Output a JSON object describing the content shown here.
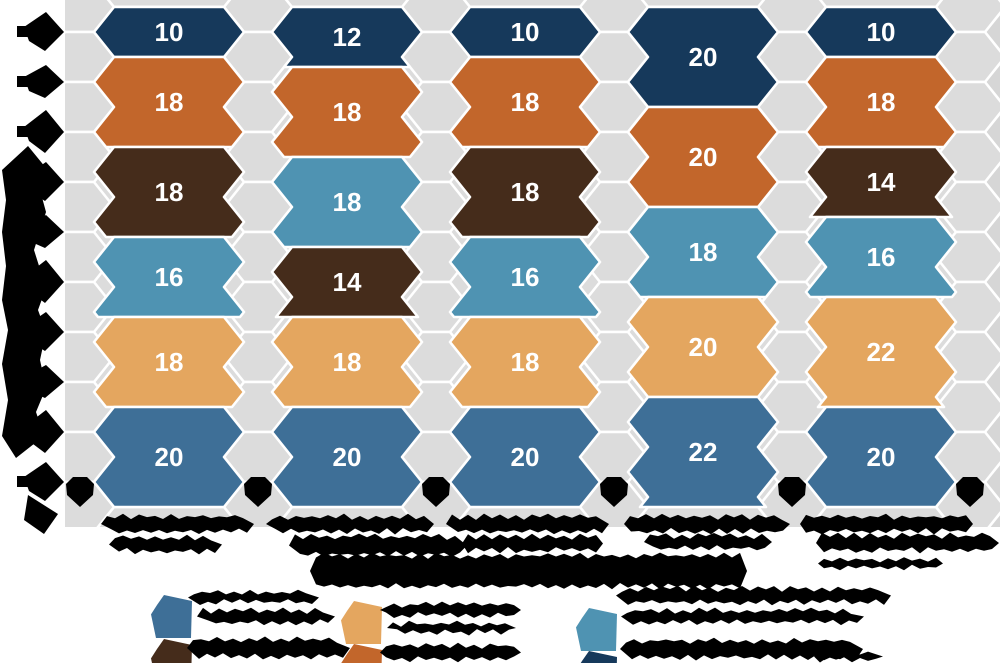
{
  "figure": {
    "plot_bg": "#d6d6d6",
    "hex_fill": "#dcdcdc",
    "gap_color": "#ffffff",
    "marker_color": "#000000",
    "redaction_color": "#000000",
    "value_text_color": "#ffffff"
  },
  "palette": {
    "navy": "#16395b",
    "orange": "#c2662b",
    "brown": "#452c1b",
    "steel": "#4f93b2",
    "tan": "#e4a65f",
    "blue": "#3e6f97"
  },
  "chart_data": {
    "type": "bar",
    "variant": "stacked-hexagon-columns",
    "stacked": true,
    "total_per_column": 100,
    "categories": [
      "",
      "",
      "",
      "",
      ""
    ],
    "category_labels_illegible": true,
    "title": "",
    "y_axis": {
      "tick_count": 10,
      "labels_illegible": true,
      "title_illegible": true,
      "range_units": [
        0,
        100
      ],
      "grid_row_units": 10
    },
    "x_axis": {
      "title_illegible": true,
      "marker_count": 6
    },
    "columns": [
      {
        "segments": [
          {
            "key": "navy",
            "value": 10
          },
          {
            "key": "orange",
            "value": 18
          },
          {
            "key": "brown",
            "value": 18
          },
          {
            "key": "steel",
            "value": 16
          },
          {
            "key": "tan",
            "value": 18
          },
          {
            "key": "blue",
            "value": 20
          }
        ]
      },
      {
        "segments": [
          {
            "key": "navy",
            "value": 12
          },
          {
            "key": "orange",
            "value": 18
          },
          {
            "key": "steel",
            "value": 18
          },
          {
            "key": "brown",
            "value": 14
          },
          {
            "key": "tan",
            "value": 18
          },
          {
            "key": "blue",
            "value": 20
          }
        ]
      },
      {
        "segments": [
          {
            "key": "navy",
            "value": 10
          },
          {
            "key": "orange",
            "value": 18
          },
          {
            "key": "brown",
            "value": 18
          },
          {
            "key": "steel",
            "value": 16
          },
          {
            "key": "tan",
            "value": 18
          },
          {
            "key": "blue",
            "value": 20
          }
        ]
      },
      {
        "segments": [
          {
            "key": "navy",
            "value": 20
          },
          {
            "key": "orange",
            "value": 20
          },
          {
            "key": "steel",
            "value": 18
          },
          {
            "key": "tan",
            "value": 20
          },
          {
            "key": "blue",
            "value": 22
          }
        ]
      },
      {
        "segments": [
          {
            "key": "navy",
            "value": 10
          },
          {
            "key": "orange",
            "value": 18
          },
          {
            "key": "brown",
            "value": 14
          },
          {
            "key": "steel",
            "value": 16
          },
          {
            "key": "tan",
            "value": 22
          },
          {
            "key": "blue",
            "value": 20
          }
        ]
      }
    ],
    "legend": {
      "rows": 2,
      "columns": 3,
      "labels_illegible": true,
      "entries": [
        {
          "key": "blue"
        },
        {
          "key": "brown"
        },
        {
          "key": "tan"
        },
        {
          "key": "orange"
        },
        {
          "key": "steel"
        },
        {
          "key": "navy"
        }
      ]
    }
  }
}
